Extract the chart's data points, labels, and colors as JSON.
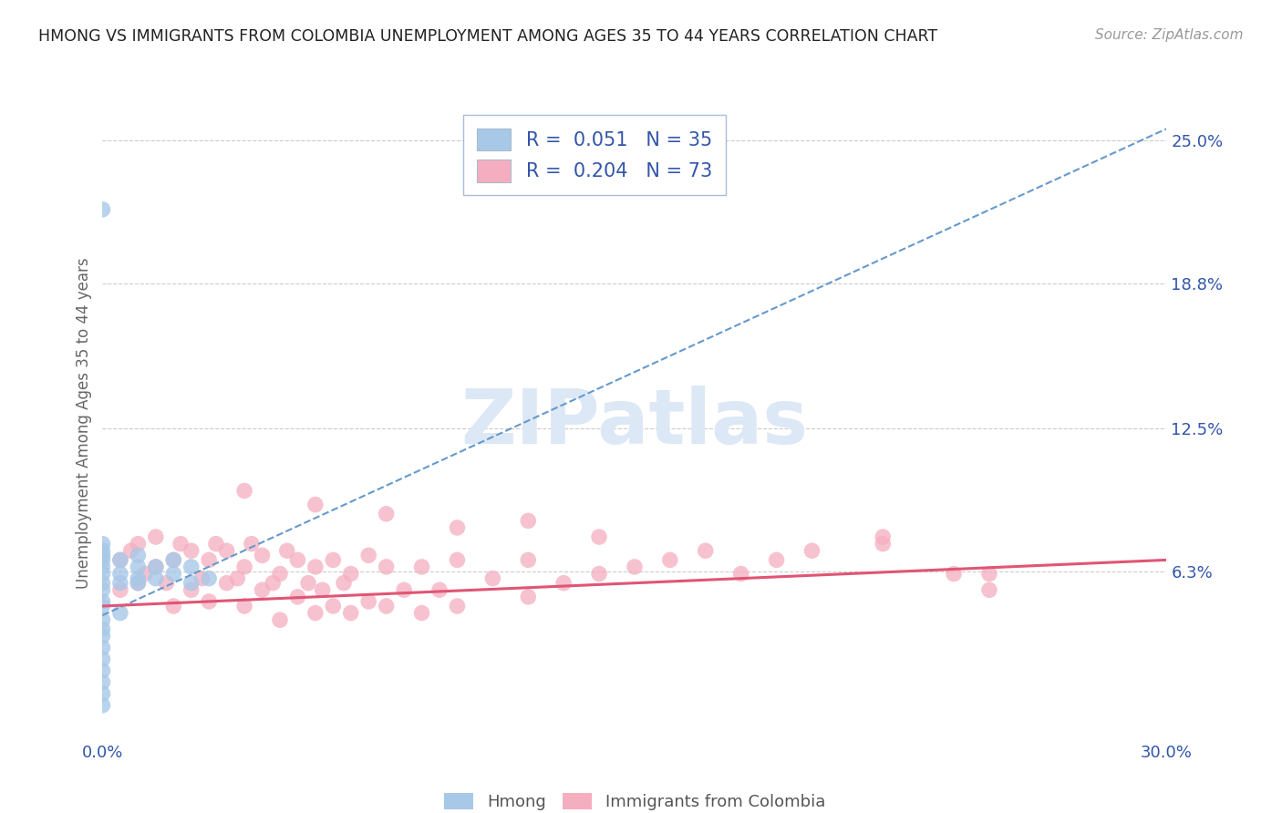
{
  "title": "HMONG VS IMMIGRANTS FROM COLOMBIA UNEMPLOYMENT AMONG AGES 35 TO 44 YEARS CORRELATION CHART",
  "source": "Source: ZipAtlas.com",
  "ylabel": "Unemployment Among Ages 35 to 44 years",
  "xlim": [
    0.0,
    0.3
  ],
  "ylim": [
    -0.01,
    0.265
  ],
  "yticks": [
    0.0,
    0.063,
    0.125,
    0.188,
    0.25
  ],
  "ytick_labels": [
    "",
    "6.3%",
    "12.5%",
    "18.8%",
    "25.0%"
  ],
  "xticks": [
    0.0,
    0.05,
    0.1,
    0.15,
    0.2,
    0.25,
    0.3
  ],
  "xtick_labels": [
    "0.0%",
    "",
    "",
    "",
    "",
    "",
    "30.0%"
  ],
  "hmong_R": 0.051,
  "hmong_N": 35,
  "colombia_R": 0.204,
  "colombia_N": 73,
  "hmong_color": "#a8c8e8",
  "hmong_line_color": "#6699cc",
  "colombia_color": "#f5aec0",
  "colombia_line_color": "#e05575",
  "watermark_color": "#dce8f5",
  "background_color": "#ffffff",
  "grid_color": "#cccccc",
  "tick_label_color": "#3355aa",
  "title_color": "#222222",
  "hmong_line": [
    0.0,
    0.044,
    0.3,
    0.255
  ],
  "colombia_line": [
    0.0,
    0.048,
    0.3,
    0.068
  ],
  "hmong_scatter_x": [
    0.0,
    0.0,
    0.0,
    0.0,
    0.0,
    0.0,
    0.0,
    0.0,
    0.0,
    0.0,
    0.005,
    0.005,
    0.005,
    0.01,
    0.01,
    0.01,
    0.01,
    0.015,
    0.015,
    0.02,
    0.02,
    0.025,
    0.025,
    0.03,
    0.005,
    0.0,
    0.0,
    0.0,
    0.0,
    0.0,
    0.0,
    0.0,
    0.0,
    0.0,
    0.0
  ],
  "hmong_scatter_y": [
    0.22,
    0.065,
    0.068,
    0.072,
    0.075,
    0.058,
    0.062,
    0.055,
    0.07,
    0.05,
    0.062,
    0.068,
    0.058,
    0.06,
    0.065,
    0.07,
    0.058,
    0.06,
    0.065,
    0.062,
    0.068,
    0.058,
    0.065,
    0.06,
    0.045,
    0.038,
    0.042,
    0.048,
    0.035,
    0.03,
    0.025,
    0.02,
    0.015,
    0.01,
    0.005
  ],
  "colombia_scatter_x": [
    0.005,
    0.005,
    0.008,
    0.01,
    0.01,
    0.012,
    0.015,
    0.015,
    0.018,
    0.02,
    0.02,
    0.022,
    0.025,
    0.025,
    0.028,
    0.03,
    0.03,
    0.032,
    0.035,
    0.035,
    0.038,
    0.04,
    0.04,
    0.042,
    0.045,
    0.045,
    0.048,
    0.05,
    0.05,
    0.052,
    0.055,
    0.055,
    0.058,
    0.06,
    0.06,
    0.062,
    0.065,
    0.065,
    0.068,
    0.07,
    0.07,
    0.075,
    0.075,
    0.08,
    0.08,
    0.085,
    0.09,
    0.09,
    0.095,
    0.1,
    0.1,
    0.11,
    0.12,
    0.12,
    0.13,
    0.14,
    0.15,
    0.16,
    0.17,
    0.18,
    0.19,
    0.2,
    0.22,
    0.24,
    0.25,
    0.04,
    0.06,
    0.08,
    0.1,
    0.12,
    0.14,
    0.22,
    0.25
  ],
  "colombia_scatter_y": [
    0.068,
    0.055,
    0.072,
    0.058,
    0.075,
    0.062,
    0.065,
    0.078,
    0.058,
    0.048,
    0.068,
    0.075,
    0.055,
    0.072,
    0.06,
    0.05,
    0.068,
    0.075,
    0.058,
    0.072,
    0.06,
    0.048,
    0.065,
    0.075,
    0.055,
    0.07,
    0.058,
    0.042,
    0.062,
    0.072,
    0.052,
    0.068,
    0.058,
    0.045,
    0.065,
    0.055,
    0.048,
    0.068,
    0.058,
    0.045,
    0.062,
    0.05,
    0.07,
    0.048,
    0.065,
    0.055,
    0.045,
    0.065,
    0.055,
    0.048,
    0.068,
    0.06,
    0.052,
    0.068,
    0.058,
    0.062,
    0.065,
    0.068,
    0.072,
    0.062,
    0.068,
    0.072,
    0.078,
    0.062,
    0.055,
    0.098,
    0.092,
    0.088,
    0.082,
    0.085,
    0.078,
    0.075,
    0.062
  ]
}
